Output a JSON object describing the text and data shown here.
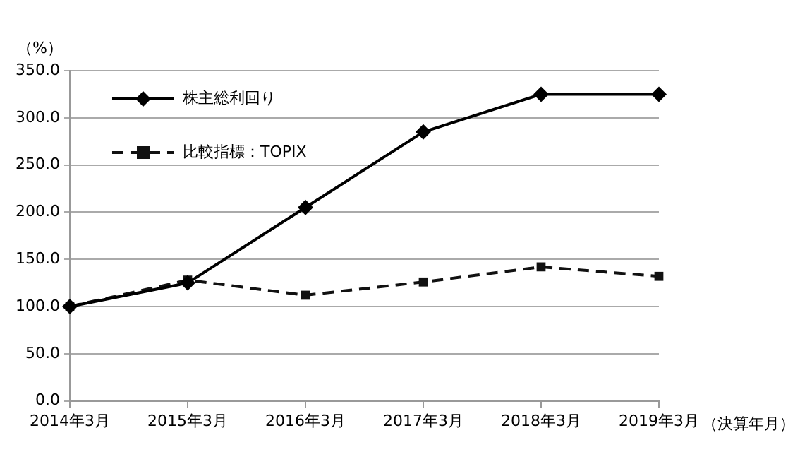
{
  "chart_data": {
    "type": "line",
    "ylabel": "（%）",
    "xlabel": "（決算年月）",
    "categories": [
      "2014年3月",
      "2015年3月",
      "2016年3月",
      "2017年3月",
      "2018年3月",
      "2019年3月"
    ],
    "series": [
      {
        "name": "株主総利回り",
        "color": "#000000",
        "values": [
          100,
          125,
          205,
          285,
          325,
          325
        ],
        "marker": "diamond",
        "line_style": "solid"
      },
      {
        "name": "比較指標：TOPIX",
        "color": "#111111",
        "values": [
          100,
          128,
          112,
          126,
          142,
          132
        ],
        "marker": "square",
        "line_style": "dashed"
      }
    ],
    "ylim": [
      0,
      350
    ],
    "yticks": [
      {
        "value": 0,
        "label": "0.0"
      },
      {
        "value": 50,
        "label": "50.0"
      },
      {
        "value": 100,
        "label": "100.0"
      },
      {
        "value": 150,
        "label": "150.0"
      },
      {
        "value": 200,
        "label": "200.0"
      },
      {
        "value": 250,
        "label": "250.0"
      },
      {
        "value": 300,
        "label": "300.0"
      },
      {
        "value": 350,
        "label": "350.0"
      }
    ],
    "grid": "y",
    "legend": "top left"
  }
}
